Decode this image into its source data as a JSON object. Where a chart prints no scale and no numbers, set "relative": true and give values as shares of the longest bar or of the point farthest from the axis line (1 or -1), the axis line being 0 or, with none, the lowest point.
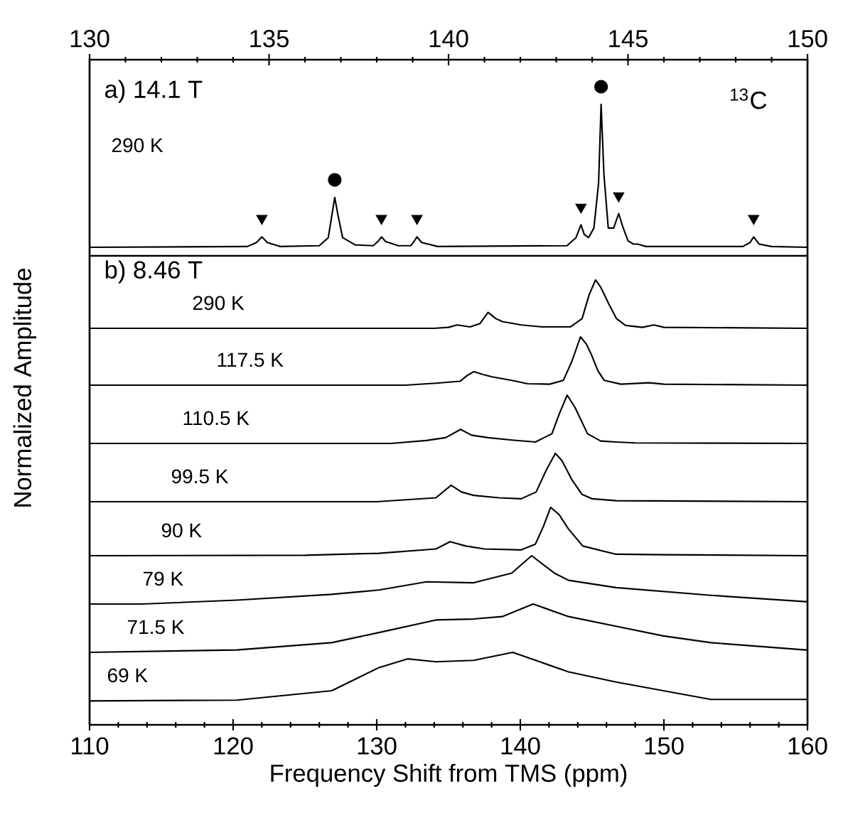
{
  "chart_data": [
    {
      "type": "line",
      "relative": true,
      "xlim": [
        130,
        150
      ],
      "xticks": [
        130,
        135,
        140,
        145,
        150
      ],
      "tick_labels": "x",
      "annotations": [
        "a) 14.1 T",
        "290 K",
        "$^{13}$C"
      ],
      "series": [
        {
          "type": "line",
          "color": "#000000",
          "x": [
            130,
            134.4,
            134.65,
            134.8,
            134.95,
            135.3,
            136.4,
            136.65,
            136.75,
            136.83,
            136.92,
            137.05,
            137.4,
            137.9,
            138.05,
            138.13,
            138.25,
            138.6,
            138.95,
            139.05,
            139.12,
            139.25,
            139.7,
            143.3,
            143.55,
            143.69,
            143.78,
            143.9,
            144.05,
            144.18,
            144.25,
            144.33,
            144.45,
            144.6,
            144.74,
            144.85,
            145.0,
            145.15,
            145.27,
            145.5,
            148.2,
            148.4,
            148.5,
            148.65,
            149,
            150
          ],
          "values": [
            0,
            0.005,
            0.03,
            0.065,
            0.03,
            0.005,
            0.01,
            0.06,
            0.2,
            0.31,
            0.2,
            0.06,
            0.015,
            0.01,
            0.04,
            0.065,
            0.035,
            0.01,
            0.01,
            0.04,
            0.065,
            0.03,
            0.005,
            0.01,
            0.06,
            0.14,
            0.08,
            0.06,
            0.12,
            0.4,
            0.89,
            0.45,
            0.12,
            0.12,
            0.21,
            0.13,
            0.04,
            0.02,
            0.02,
            0.005,
            0.005,
            0.03,
            0.065,
            0.02,
            0.005,
            0
          ]
        },
        {
          "type": "scatter",
          "marker": "circle",
          "color": "#000000",
          "x": [
            136.83,
            144.25
          ],
          "values": [
            0.42,
            1
          ]
        },
        {
          "type": "scatter",
          "marker": "triangle",
          "color": "#000000",
          "x": [
            134.8,
            138.13,
            139.12,
            143.69,
            144.74,
            148.5
          ],
          "values": [
            0.18,
            0.18,
            0.18,
            0.25,
            0.32,
            0.18
          ]
        }
      ]
    },
    {
      "type": "line",
      "relative": true,
      "xlim": [
        110,
        160
      ],
      "tick_labels": false,
      "annotations": [
        "b) 8.46 T",
        "290 K"
      ],
      "color": "#000000",
      "x": [
        110,
        134,
        135,
        135.6,
        136.5,
        137.2,
        137.75,
        138.3,
        138.74,
        140.06,
        141.5,
        143.5,
        144.3,
        144.8,
        145.24,
        145.6,
        146.17,
        146.7,
        147.32,
        148.5,
        149.3,
        150,
        160
      ],
      "values": [
        0,
        0,
        0.02,
        0.07,
        0.03,
        0.1,
        0.33,
        0.2,
        0.14,
        0.07,
        0.03,
        0.03,
        0.2,
        0.7,
        1,
        0.85,
        0.5,
        0.2,
        0.06,
        0.02,
        0.07,
        0.02,
        0
      ]
    },
    {
      "type": "line",
      "relative": true,
      "xlim": [
        110,
        160
      ],
      "tick_labels": false,
      "ylabel": "Normalized Amplitude",
      "annotations": [
        "117.5 K"
      ],
      "color": "#000000",
      "x": [
        110,
        132,
        134.12,
        135.8,
        136.3,
        136.76,
        137.4,
        138.08,
        139.4,
        140.5,
        142.04,
        143,
        143.6,
        144.19,
        144.6,
        144.95,
        145.4,
        145.84,
        147,
        148.97,
        150,
        160
      ],
      "values": [
        0,
        0,
        0.04,
        0.08,
        0.2,
        0.28,
        0.22,
        0.17,
        0.1,
        0.03,
        0.02,
        0.1,
        0.5,
        1,
        0.85,
        0.63,
        0.3,
        0.1,
        0.02,
        0.05,
        0.02,
        0
      ]
    },
    {
      "type": "line",
      "relative": true,
      "xlim": [
        110,
        160
      ],
      "tick_labels": false,
      "annotations": [
        "110.5 K"
      ],
      "color": "#000000",
      "x": [
        110,
        131,
        133.46,
        134.8,
        135.84,
        136.6,
        137.75,
        139.4,
        141.05,
        142.2,
        142.7,
        143.26,
        143.8,
        144.68,
        145.6,
        146.66,
        148,
        160
      ],
      "values": [
        0,
        0,
        0.06,
        0.12,
        0.29,
        0.17,
        0.12,
        0.07,
        0.03,
        0.2,
        0.6,
        1,
        0.75,
        0.2,
        0.05,
        0.03,
        0.01,
        0
      ]
    },
    {
      "type": "line",
      "relative": true,
      "xlim": [
        110,
        160
      ],
      "tick_labels": false,
      "annotations": [
        "99.5 K"
      ],
      "color": "#000000",
      "x": [
        110,
        130,
        134.12,
        135.18,
        135.9,
        136.76,
        138.5,
        140.06,
        141.1,
        141.8,
        142.44,
        142.9,
        143.6,
        144.3,
        145.01,
        146.7,
        160
      ],
      "values": [
        0,
        0,
        0.08,
        0.34,
        0.2,
        0.13,
        0.08,
        0.06,
        0.2,
        0.65,
        1,
        0.85,
        0.45,
        0.15,
        0.06,
        0.02,
        0
      ]
    },
    {
      "type": "line",
      "relative": true,
      "xlim": [
        110,
        160
      ],
      "tick_labels": false,
      "annotations": [
        "90 K"
      ],
      "color": "#000000",
      "x": [
        110,
        125,
        130.16,
        134.12,
        135.11,
        136.2,
        137.5,
        140.06,
        141.05,
        141.6,
        142.11,
        142.7,
        143.36,
        144.35,
        146.66,
        150,
        160
      ],
      "values": [
        0,
        0.01,
        0.05,
        0.14,
        0.29,
        0.2,
        0.14,
        0.12,
        0.24,
        0.6,
        1,
        0.85,
        0.55,
        0.2,
        0.03,
        0.02,
        0
      ]
    },
    {
      "type": "line",
      "relative": true,
      "xlim": [
        110,
        160
      ],
      "tick_labels": false,
      "annotations": [
        "79 K"
      ],
      "color": "#000000",
      "x": [
        110,
        113.66,
        120.26,
        126.86,
        130.16,
        133.46,
        136.76,
        139.4,
        140.79,
        142.37,
        143.36,
        146.66,
        153.27,
        159.86,
        160
      ],
      "values": [
        0,
        0,
        0.08,
        0.2,
        0.29,
        0.46,
        0.44,
        0.64,
        1,
        0.64,
        0.49,
        0.34,
        0.18,
        0.05,
        0.05
      ]
    },
    {
      "type": "line",
      "relative": true,
      "xlim": [
        110,
        160
      ],
      "tick_labels": false,
      "annotations": [
        "71.5 K"
      ],
      "color": "#000000",
      "x": [
        110,
        120.26,
        126.86,
        130.16,
        134.12,
        136.76,
        138.74,
        140.89,
        143.36,
        146.66,
        149.96,
        153.27,
        159.86,
        160
      ],
      "values": [
        0,
        0.05,
        0.2,
        0.41,
        0.67,
        0.69,
        0.74,
        1,
        0.74,
        0.54,
        0.34,
        0.2,
        0.05,
        0.05
      ]
    },
    {
      "type": "line",
      "relative": true,
      "xlim": [
        110,
        160
      ],
      "xticks": [
        110,
        120,
        130,
        140,
        150,
        160
      ],
      "tick_labels": "x",
      "xlabel": "Frequency Shift from TMS (ppm)",
      "annotations": [
        "69 K"
      ],
      "color": "#000000",
      "x": [
        110,
        120.26,
        126.86,
        128.51,
        130.16,
        132.14,
        134.12,
        136.76,
        139.47,
        143.36,
        146.66,
        149.96,
        153.27,
        159.86,
        160
      ],
      "values": [
        0.33,
        0.34,
        0.47,
        0.63,
        0.79,
        0.91,
        0.87,
        0.89,
        1,
        0.73,
        0.59,
        0.47,
        0.35,
        0.35,
        0.35
      ]
    }
  ]
}
